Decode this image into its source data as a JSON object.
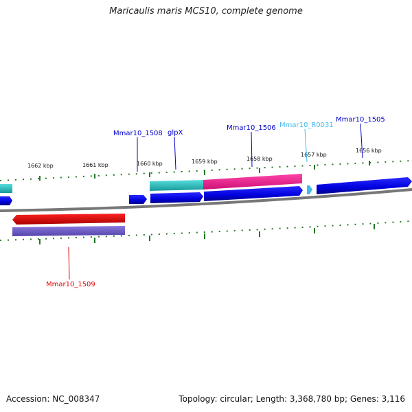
{
  "title": "Maricaulis maris MCS10, complete genome",
  "footer": {
    "accession": "Accession: NC_008347",
    "topology": "Topology: circular; Length: 3,368,780 bp; Genes: 3,116"
  },
  "scale_labels": [
    "1662 kbp",
    "1661 kbp",
    "1660 kbp",
    "1659 kbp",
    "1658 kbp",
    "1657 kbp",
    "1656 kbp"
  ],
  "gene_labels": {
    "mmar10_1508": "Mmar10_1508",
    "glpx": "glpX",
    "mmar10_1506": "Mmar10_1506",
    "mmar10_r0031": "Mmar10_R0031",
    "mmar10_1505": "Mmar10_1505",
    "mmar10_1509": "Mmar10_1509"
  },
  "colors": {
    "cds_blue": "#0000dd",
    "rna_cyan": "#44bbee",
    "teal": "#33cccc",
    "pink": "#ee2299",
    "red": "#ee0000",
    "purple": "#6655cc",
    "ruler_green": "#227722",
    "backbone": "#888888"
  }
}
